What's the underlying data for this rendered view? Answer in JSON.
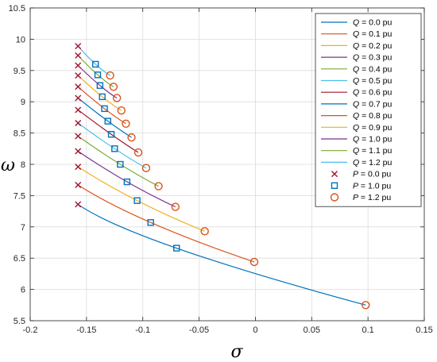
{
  "chart_data": {
    "type": "line",
    "xlabel": "σ",
    "ylabel": "ω",
    "xlim": [
      -0.2,
      0.15
    ],
    "ylim": [
      5.5,
      10.5
    ],
    "x_ticks": [
      "-0.2",
      "-0.15",
      "-0.1",
      "-0.05",
      "0",
      "0.05",
      "0.1",
      "0.15"
    ],
    "y_ticks": [
      "5.5",
      "6",
      "6.5",
      "7",
      "7.5",
      "8",
      "8.5",
      "9",
      "9.5",
      "10",
      "10.5"
    ],
    "x_tick_values": [
      -0.2,
      -0.15,
      -0.1,
      -0.05,
      0,
      0.05,
      0.1,
      0.15
    ],
    "y_tick_values": [
      5.5,
      6,
      6.5,
      7,
      7.5,
      8,
      8.5,
      9,
      9.5,
      10,
      10.5
    ],
    "grid": true,
    "legend_position": "top-right",
    "series": [
      {
        "var": "Q",
        "label": " = 0.0 pu",
        "color": "#0072BD",
        "points": [
          [
            -0.1575,
            7.36
          ],
          [
            -0.07,
            6.66
          ],
          [
            0.098,
            5.75
          ]
        ]
      },
      {
        "var": "Q",
        "label": " = 0.1 pu",
        "color": "#D95319",
        "points": [
          [
            -0.1575,
            7.67
          ],
          [
            -0.093,
            7.07
          ],
          [
            -0.001,
            6.44
          ]
        ]
      },
      {
        "var": "Q",
        "label": " = 0.2 pu",
        "color": "#EDB120",
        "points": [
          [
            -0.1575,
            7.96
          ],
          [
            -0.105,
            7.42
          ],
          [
            -0.045,
            6.93
          ]
        ]
      },
      {
        "var": "Q",
        "label": " = 0.3 pu",
        "color": "#7E2F8E",
        "points": [
          [
            -0.1575,
            8.21
          ],
          [
            -0.114,
            7.72
          ],
          [
            -0.071,
            7.32
          ]
        ]
      },
      {
        "var": "Q",
        "label": " = 0.4 pu",
        "color": "#77AC30",
        "points": [
          [
            -0.1575,
            8.45
          ],
          [
            -0.12,
            8.0
          ],
          [
            -0.086,
            7.65
          ]
        ]
      },
      {
        "var": "Q",
        "label": " = 0.5 pu",
        "color": "#4DBEEE",
        "points": [
          [
            -0.1575,
            8.66
          ],
          [
            -0.125,
            8.25
          ],
          [
            -0.097,
            7.94
          ]
        ]
      },
      {
        "var": "Q",
        "label": " = 0.6 pu",
        "color": "#A2142F",
        "points": [
          [
            -0.1575,
            8.87
          ],
          [
            -0.128,
            8.48
          ],
          [
            -0.104,
            8.19
          ]
        ]
      },
      {
        "var": "Q",
        "label": " = 0.7 pu",
        "color": "#0072BD",
        "points": [
          [
            -0.1575,
            9.06
          ],
          [
            -0.131,
            8.69
          ],
          [
            -0.11,
            8.43
          ]
        ]
      },
      {
        "var": "Q",
        "label": " = 0.8 pu",
        "color": "#D95319",
        "points": [
          [
            -0.1575,
            9.24
          ],
          [
            -0.134,
            8.89
          ],
          [
            -0.115,
            8.65
          ]
        ]
      },
      {
        "var": "Q",
        "label": " = 0.9 pu",
        "color": "#EDB120",
        "points": [
          [
            -0.1575,
            9.42
          ],
          [
            -0.136,
            9.08
          ],
          [
            -0.119,
            8.86
          ]
        ]
      },
      {
        "var": "Q",
        "label": " = 1.0 pu",
        "color": "#7E2F8E",
        "points": [
          [
            -0.1575,
            9.58
          ],
          [
            -0.138,
            9.26
          ],
          [
            -0.123,
            9.06
          ]
        ]
      },
      {
        "var": "Q",
        "label": " = 1.1 pu",
        "color": "#77AC30",
        "points": [
          [
            -0.1575,
            9.74
          ],
          [
            -0.14,
            9.43
          ],
          [
            -0.126,
            9.24
          ]
        ]
      },
      {
        "var": "Q",
        "label": " = 1.2 pu",
        "color": "#4DBEEE",
        "points": [
          [
            -0.1575,
            9.89
          ],
          [
            -0.142,
            9.6
          ],
          [
            -0.129,
            9.42
          ]
        ]
      }
    ],
    "marker_series": [
      {
        "var": "P",
        "label": " = 0.0 pu",
        "marker": "x",
        "color": "#A2142F",
        "point_index": 0
      },
      {
        "var": "P",
        "label": " = 1.0 pu",
        "marker": "square",
        "color": "#0072BD",
        "point_index": 1
      },
      {
        "var": "P",
        "label": " = 1.2 pu",
        "marker": "circle",
        "color": "#D95319",
        "point_index": 2
      }
    ]
  }
}
